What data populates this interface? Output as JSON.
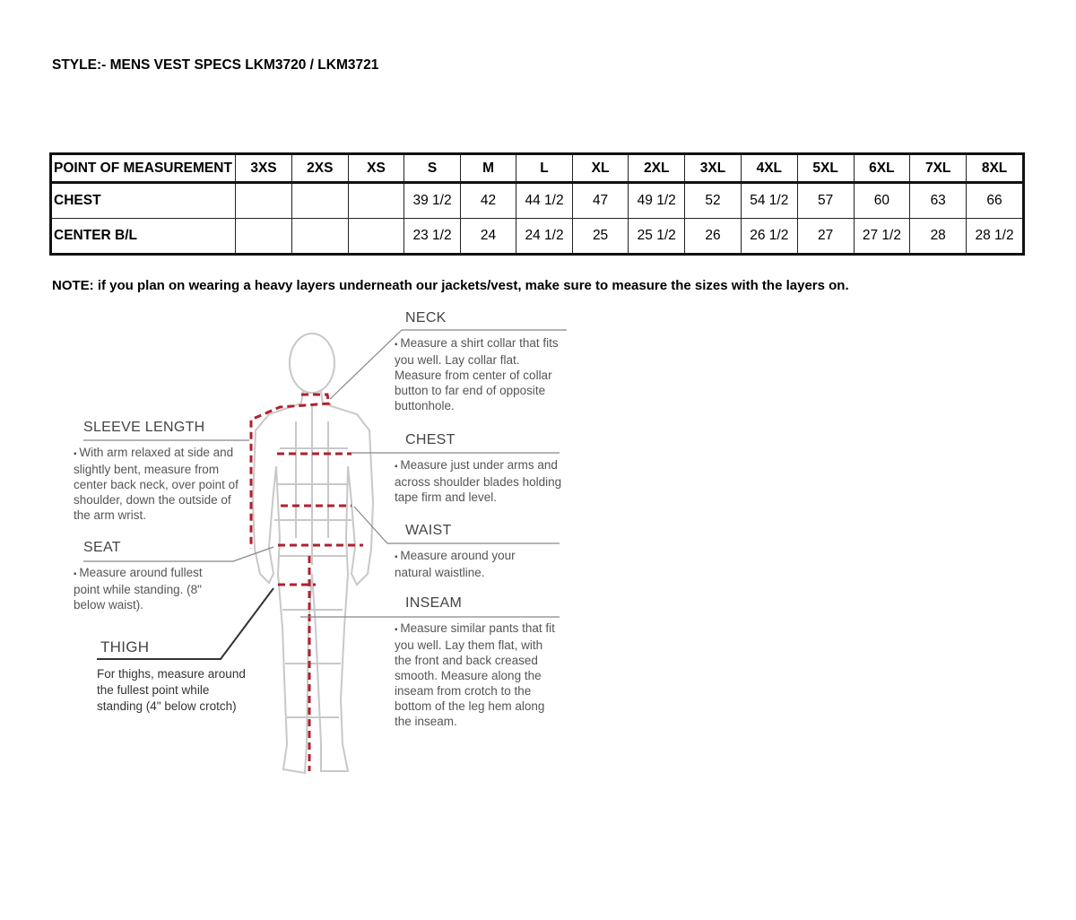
{
  "title": "STYLE:- MENS VEST SPECS  LKM3720 / LKM3721",
  "table": {
    "headers": [
      "POINT OF MEASUREMENT",
      "3XS",
      "2XS",
      "XS",
      "S",
      "M",
      "L",
      "XL",
      "2XL",
      "3XL",
      "4XL",
      "5XL",
      "6XL",
      "7XL",
      "8XL"
    ],
    "rows": [
      [
        "CHEST",
        "",
        "",
        "",
        "39 1/2",
        "42",
        "44 1/2",
        "47",
        "49 1/2",
        "52",
        "54 1/2",
        "57",
        "60",
        "63",
        "66"
      ],
      [
        "CENTER B/L",
        "",
        "",
        "",
        "23 1/2",
        "24",
        "24 1/2",
        "25",
        "25 1/2",
        "26",
        "26 1/2",
        "27",
        "27 1/2",
        "28",
        "28 1/2"
      ]
    ]
  },
  "note": "NOTE: if you plan on wearing a heavy layers underneath our jackets/vest, make sure to measure the sizes with the layers on.",
  "guide": {
    "neck": {
      "label": "NECK",
      "text": "Measure a shirt collar that fits you well. Lay collar flat. Measure from center of collar button to far end of opposite buttonhole."
    },
    "chest": {
      "label": "CHEST",
      "text": "Measure just under arms and across shoulder blades holding tape firm and level."
    },
    "waist": {
      "label": "WAIST",
      "text": "Measure around your natural waistline."
    },
    "inseam": {
      "label": "INSEAM",
      "text": "Measure similar pants that fit you well. Lay them flat, with the front and back creased smooth. Measure along the inseam from crotch to the bottom of the leg hem along the inseam."
    },
    "sleeve": {
      "label": "SLEEVE LENGTH",
      "text": "With arm relaxed at side and slightly bent, measure from center back neck, over point of shoulder, down the outside of the arm wrist."
    },
    "seat": {
      "label": "SEAT",
      "text": "Measure around fullest point while standing. (8\" below waist)."
    },
    "thigh": {
      "label": "THIGH",
      "text": "For thighs, measure around the fullest point while standing (4\" below crotch)"
    }
  },
  "colors": {
    "measure_line": "#b0202e",
    "figure": "#c8c8c8"
  }
}
